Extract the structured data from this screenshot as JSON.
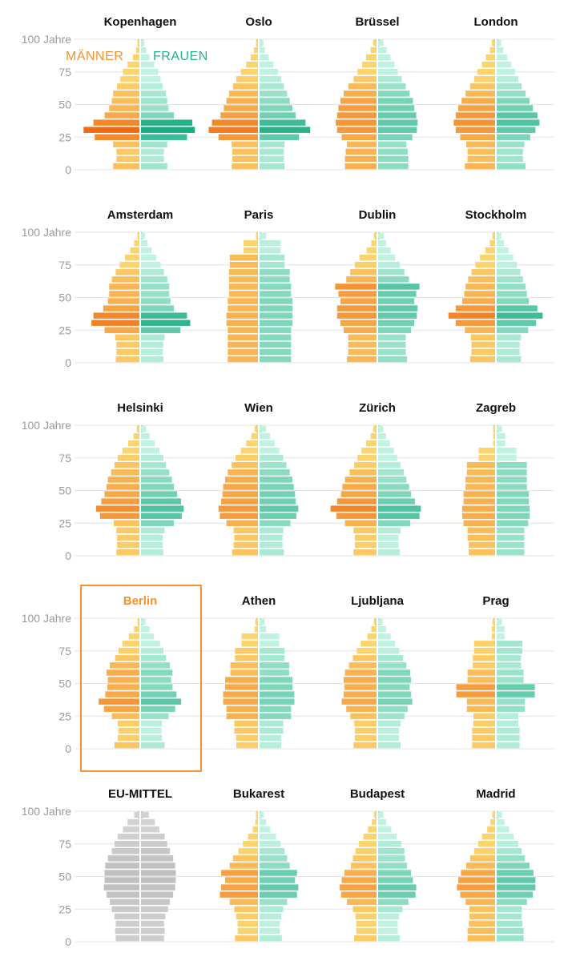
{
  "legend": {
    "male": "MÄNNER",
    "female": "FRAUEN"
  },
  "chart_data": {
    "type": "bar",
    "subtype": "population-pyramids",
    "yaxis": {
      "label_top": "100 Jahre",
      "ticks": [
        "100 Jahre",
        "75",
        "50",
        "25",
        "0"
      ],
      "tick_values": [
        100,
        75,
        50,
        25,
        0
      ],
      "ylim": [
        0,
        100
      ]
    },
    "age_groups": [
      "0-4",
      "5-9",
      "10-14",
      "15-19",
      "20-24",
      "25-29",
      "30-34",
      "35-39",
      "40-44",
      "45-49",
      "50-54",
      "55-59",
      "60-64",
      "65-69",
      "70-74",
      "75-79",
      "80-84",
      "85+"
    ],
    "colors": {
      "male_low": "#fcd46e",
      "male_high": "#f06a12",
      "female_low": "#bff2df",
      "female_high": "#0fa77c",
      "mean_male": "#c8c8c8",
      "mean_female": "#c8c8c8",
      "highlight": "#f4912c"
    },
    "cities": [
      {
        "name": "Kopenhagen",
        "male": [
          4.0,
          3.5,
          3.5,
          4.0,
          6.8,
          8.5,
          7.0,
          5.3,
          4.6,
          4.2,
          4.0,
          3.4,
          2.9,
          2.5,
          1.8,
          1.0,
          0.5,
          0.3
        ],
        "female": [
          4.0,
          3.5,
          3.5,
          4.0,
          7.0,
          8.2,
          7.8,
          5.0,
          4.2,
          4.0,
          3.8,
          3.3,
          3.0,
          2.6,
          2.0,
          1.3,
          0.8,
          0.5
        ]
      },
      {
        "name": "Oslo",
        "male": [
          4.0,
          3.9,
          3.9,
          4.0,
          6.0,
          7.5,
          7.0,
          5.7,
          5.2,
          4.8,
          4.4,
          3.8,
          3.3,
          2.6,
          1.8,
          1.1,
          0.6,
          0.3
        ],
        "female": [
          3.8,
          3.7,
          3.7,
          3.8,
          6.0,
          7.7,
          7.0,
          5.5,
          5.0,
          4.6,
          4.2,
          3.7,
          3.3,
          2.8,
          2.1,
          1.4,
          0.8,
          0.6
        ]
      },
      {
        "name": "Brüssel",
        "male": [
          4.8,
          4.8,
          4.7,
          4.5,
          5.3,
          6.0,
          6.2,
          6.0,
          5.8,
          5.5,
          5.0,
          4.3,
          3.5,
          2.9,
          2.2,
          1.6,
          0.9,
          0.5
        ],
        "female": [
          4.6,
          4.6,
          4.5,
          4.3,
          5.2,
          5.9,
          6.0,
          5.8,
          5.5,
          5.3,
          4.8,
          4.2,
          3.6,
          3.0,
          2.5,
          1.9,
          1.3,
          0.8
        ]
      },
      {
        "name": "London",
        "male": [
          4.6,
          4.2,
          4.2,
          4.4,
          5.3,
          6.0,
          6.3,
          6.0,
          5.6,
          5.1,
          4.5,
          3.8,
          3.2,
          2.7,
          2.0,
          1.4,
          0.8,
          0.5
        ],
        "female": [
          4.4,
          4.0,
          4.0,
          4.2,
          5.1,
          5.9,
          6.5,
          6.2,
          5.5,
          5.0,
          4.4,
          3.8,
          3.3,
          2.8,
          2.2,
          1.6,
          1.0,
          0.7
        ]
      },
      {
        "name": "Amsterdam",
        "male": [
          3.6,
          3.5,
          3.5,
          3.7,
          5.3,
          7.3,
          7.0,
          5.5,
          4.8,
          4.6,
          4.6,
          4.2,
          3.6,
          3.0,
          2.2,
          1.4,
          0.8,
          0.3
        ],
        "female": [
          3.4,
          3.3,
          3.4,
          3.6,
          6.0,
          7.5,
          7.0,
          5.0,
          4.5,
          4.3,
          4.3,
          4.0,
          3.5,
          3.0,
          2.3,
          1.6,
          1.0,
          0.6
        ]
      },
      {
        "name": "Paris",
        "male": [
          4.6,
          4.6,
          4.6,
          4.6,
          4.6,
          4.8,
          4.8,
          4.6,
          4.6,
          4.4,
          4.4,
          4.4,
          4.4,
          4.3,
          4.3,
          2.2,
          2.2,
          0.3
        ],
        "female": [
          4.8,
          4.8,
          4.8,
          4.8,
          4.8,
          5.0,
          5.0,
          5.0,
          5.0,
          4.8,
          4.8,
          4.6,
          4.6,
          3.8,
          3.8,
          3.2,
          3.2,
          1.0
        ]
      },
      {
        "name": "Dublin",
        "male": [
          4.5,
          4.3,
          4.3,
          4.3,
          5.0,
          5.5,
          6.0,
          6.0,
          5.5,
          5.8,
          6.3,
          4.6,
          4.0,
          3.3,
          2.6,
          1.5,
          0.8,
          0.4
        ],
        "female": [
          4.4,
          4.2,
          4.2,
          4.2,
          5.0,
          5.5,
          5.9,
          6.0,
          5.5,
          5.8,
          6.3,
          4.7,
          4.0,
          3.3,
          2.6,
          1.9,
          1.2,
          0.9
        ]
      },
      {
        "name": "Stockholm",
        "male": [
          3.8,
          3.6,
          3.6,
          3.7,
          4.6,
          6.0,
          7.1,
          6.0,
          5.0,
          4.7,
          4.5,
          4.1,
          3.6,
          3.0,
          2.3,
          1.5,
          0.8,
          0.4
        ],
        "female": [
          3.7,
          3.5,
          3.5,
          3.7,
          4.8,
          6.0,
          7.0,
          6.2,
          4.9,
          4.6,
          4.4,
          4.0,
          3.6,
          3.1,
          2.5,
          1.8,
          1.1,
          0.7
        ]
      },
      {
        "name": "Helsinki",
        "male": [
          3.5,
          3.4,
          3.4,
          3.5,
          3.9,
          6.0,
          6.6,
          5.8,
          5.3,
          5.0,
          4.8,
          4.3,
          3.8,
          3.3,
          2.6,
          1.7,
          0.9,
          0.4
        ],
        "female": [
          3.4,
          3.3,
          3.3,
          3.6,
          5.0,
          6.2,
          6.5,
          6.1,
          5.5,
          5.0,
          4.7,
          4.3,
          3.8,
          3.4,
          2.8,
          2.1,
          1.3,
          0.8
        ]
      },
      {
        "name": "Wien",
        "male": [
          3.9,
          3.7,
          3.6,
          3.7,
          4.8,
          5.8,
          6.0,
          5.6,
          5.4,
          5.3,
          5.0,
          4.6,
          4.0,
          3.4,
          2.6,
          1.8,
          1.0,
          0.5
        ],
        "female": [
          3.7,
          3.5,
          3.5,
          3.6,
          4.7,
          5.6,
          5.9,
          5.5,
          5.4,
          5.2,
          5.0,
          4.6,
          4.1,
          3.6,
          3.0,
          2.3,
          1.6,
          1.0
        ]
      },
      {
        "name": "Zürich",
        "male": [
          3.5,
          3.3,
          3.3,
          3.5,
          4.8,
          6.1,
          7.0,
          6.0,
          5.4,
          5.2,
          4.8,
          4.1,
          3.4,
          2.9,
          2.3,
          1.6,
          0.9,
          0.5
        ],
        "female": [
          3.3,
          3.1,
          3.1,
          3.4,
          4.9,
          6.3,
          6.5,
          5.6,
          5.0,
          4.7,
          4.3,
          3.9,
          3.4,
          2.9,
          2.4,
          1.8,
          1.2,
          0.8
        ]
      },
      {
        "name": "Zagreb",
        "male": [
          4.0,
          4.0,
          4.2,
          4.2,
          4.8,
          5.0,
          5.0,
          4.8,
          4.8,
          4.5,
          4.5,
          4.3,
          4.3,
          2.5,
          2.5,
          0.3,
          0.3,
          0.3
        ],
        "female": [
          4.2,
          4.2,
          4.2,
          4.2,
          4.8,
          5.0,
          5.0,
          4.9,
          4.9,
          4.6,
          4.6,
          4.6,
          4.6,
          3.0,
          3.0,
          1.3,
          1.3,
          0.8
        ]
      },
      {
        "name": "Berlin",
        "male": [
          3.8,
          3.3,
          3.2,
          3.3,
          4.2,
          5.4,
          6.2,
          5.2,
          4.9,
          4.8,
          5.0,
          4.5,
          3.7,
          3.2,
          2.6,
          1.6,
          0.8,
          0.3
        ],
        "female": [
          3.6,
          3.2,
          3.1,
          3.2,
          4.2,
          5.2,
          6.1,
          5.4,
          4.8,
          4.6,
          4.8,
          4.4,
          3.8,
          3.4,
          2.9,
          2.0,
          1.3,
          0.7
        ]
      },
      {
        "name": "Athen",
        "male": [
          3.3,
          3.3,
          3.6,
          3.6,
          4.8,
          4.8,
          5.3,
          5.3,
          5.0,
          5.0,
          4.2,
          4.2,
          3.5,
          3.5,
          2.5,
          2.5,
          0.5,
          0.4
        ],
        "female": [
          3.3,
          3.3,
          3.6,
          3.6,
          4.8,
          4.8,
          5.3,
          5.3,
          5.0,
          5.0,
          4.5,
          4.5,
          3.8,
          3.8,
          3.0,
          3.0,
          1.0,
          0.8
        ]
      },
      {
        "name": "Ljubljana",
        "male": [
          3.5,
          3.3,
          3.3,
          3.4,
          4.0,
          4.6,
          5.3,
          5.0,
          4.9,
          5.0,
          4.8,
          4.2,
          3.6,
          3.0,
          2.4,
          1.4,
          0.8,
          0.4
        ],
        "female": [
          3.4,
          3.2,
          3.2,
          3.4,
          4.0,
          4.5,
          5.2,
          5.0,
          4.8,
          5.0,
          4.9,
          4.3,
          3.8,
          3.2,
          2.6,
          1.9,
          1.2,
          0.7
        ]
      },
      {
        "name": "Prag",
        "male": [
          3.5,
          3.5,
          3.5,
          3.3,
          3.3,
          4.3,
          4.3,
          5.9,
          5.9,
          4.2,
          4.2,
          3.4,
          3.4,
          3.2,
          3.2,
          0.5,
          0.5,
          0.4
        ],
        "female": [
          3.5,
          3.5,
          3.5,
          3.3,
          3.3,
          4.3,
          4.3,
          5.8,
          5.8,
          4.1,
          4.1,
          3.7,
          3.7,
          3.9,
          3.9,
          1.2,
          1.2,
          0.8
        ]
      },
      {
        "name": "EU-MITTEL",
        "mean": true,
        "male": [
          3.6,
          3.7,
          3.6,
          3.8,
          4.2,
          4.5,
          5.0,
          5.4,
          5.3,
          5.3,
          5.2,
          4.8,
          4.2,
          3.8,
          3.3,
          2.5,
          1.8,
          0.8
        ],
        "female": [
          3.5,
          3.6,
          3.5,
          3.7,
          4.1,
          4.4,
          4.9,
          5.2,
          5.3,
          5.3,
          5.2,
          4.9,
          4.4,
          4.0,
          3.6,
          2.8,
          2.1,
          1.2
        ]
      },
      {
        "name": "Bukarest",
        "male": [
          3.5,
          3.1,
          3.1,
          3.3,
          3.6,
          4.3,
          5.8,
          5.6,
          5.0,
          5.6,
          4.3,
          3.8,
          3.0,
          2.3,
          1.5,
          0.8,
          0.4,
          0.3
        ],
        "female": [
          3.4,
          3.1,
          3.1,
          3.3,
          3.6,
          4.2,
          5.7,
          5.9,
          5.4,
          5.7,
          4.6,
          4.2,
          3.8,
          3.2,
          2.5,
          1.6,
          1.0,
          0.6
        ]
      },
      {
        "name": "Budapest",
        "male": [
          3.4,
          3.1,
          3.1,
          3.2,
          3.6,
          4.5,
          5.4,
          5.6,
          5.3,
          4.9,
          3.9,
          3.6,
          3.2,
          2.7,
          2.0,
          1.3,
          0.7,
          0.4
        ],
        "female": [
          3.3,
          3.0,
          3.0,
          3.2,
          3.7,
          4.6,
          5.7,
          5.8,
          5.3,
          5.0,
          4.4,
          4.1,
          4.0,
          3.5,
          2.8,
          2.0,
          1.2,
          0.8
        ]
      },
      {
        "name": "Madrid",
        "male": [
          4.2,
          4.2,
          4.0,
          3.9,
          3.9,
          4.5,
          5.3,
          5.8,
          5.6,
          5.2,
          4.4,
          3.8,
          3.2,
          2.6,
          2.0,
          1.2,
          0.7,
          0.4
        ],
        "female": [
          4.1,
          4.1,
          3.9,
          3.8,
          3.8,
          4.6,
          5.5,
          5.9,
          5.9,
          5.6,
          5.0,
          4.3,
          3.8,
          3.3,
          2.6,
          1.9,
          1.2,
          0.8
        ]
      }
    ],
    "highlight_city": "Berlin"
  }
}
